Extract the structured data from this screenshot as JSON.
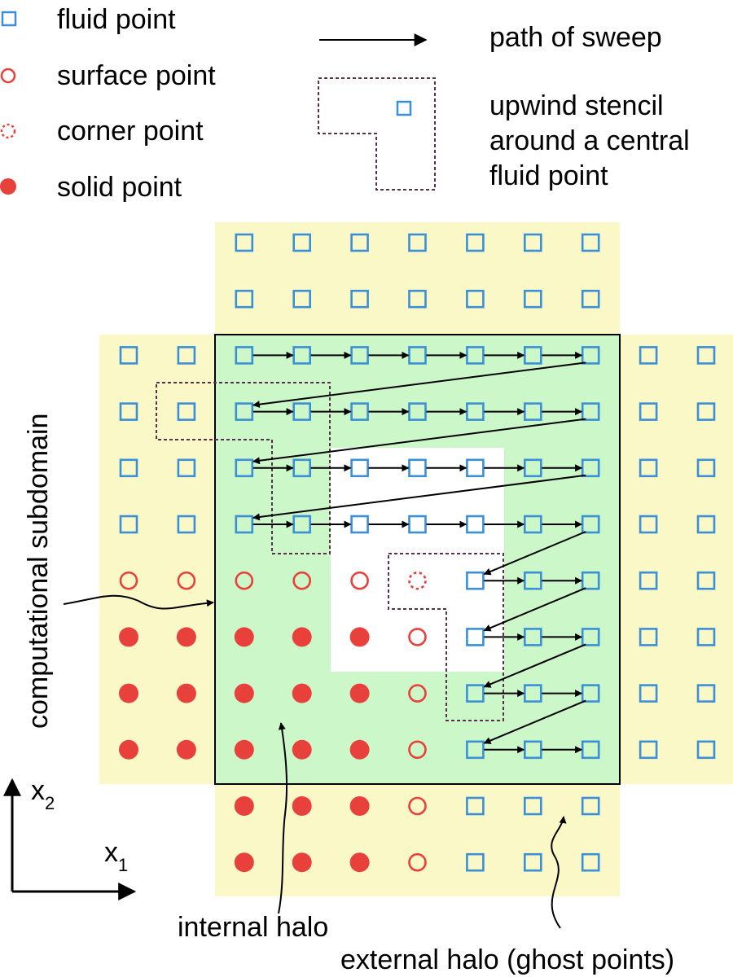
{
  "legend": {
    "fluid": "fluid point",
    "surface": "surface point",
    "corner": "corner point",
    "solid": "solid point",
    "sweep": "path of sweep",
    "stencil_line1": "upwind stencil",
    "stencil_line2": "around a central",
    "stencil_line3": "fluid point"
  },
  "labels": {
    "subdomain": "computational subdomain",
    "internal_halo": "internal halo",
    "external_halo": "external halo (ghost points)",
    "axis_x2": "x",
    "axis_x2_sub": "2",
    "axis_x1": "x",
    "axis_x1_sub": "1"
  },
  "grid": {
    "rows": [
      [
        "",
        "",
        "F",
        "F",
        "F",
        "F",
        "F",
        "F",
        "F",
        "",
        ""
      ],
      [
        "",
        "",
        "F",
        "F",
        "F",
        "F",
        "F",
        "F",
        "F",
        "",
        ""
      ],
      [
        "F",
        "F",
        "F",
        "F",
        "F",
        "F",
        "F",
        "F",
        "F",
        "F",
        "F"
      ],
      [
        "F",
        "F",
        "F",
        "F",
        "F",
        "F",
        "F",
        "F",
        "F",
        "F",
        "F"
      ],
      [
        "F",
        "F",
        "F",
        "F",
        "F",
        "F",
        "F",
        "F",
        "F",
        "F",
        "F"
      ],
      [
        "F",
        "F",
        "F",
        "F",
        "F",
        "F",
        "F",
        "F",
        "F",
        "F",
        "F"
      ],
      [
        "S",
        "S",
        "S",
        "S",
        "S",
        "C",
        "F",
        "F",
        "F",
        "F",
        "F"
      ],
      [
        "D",
        "D",
        "D",
        "D",
        "D",
        "S",
        "F",
        "F",
        "F",
        "F",
        "F"
      ],
      [
        "D",
        "D",
        "D",
        "D",
        "D",
        "S",
        "F",
        "F",
        "F",
        "F",
        "F"
      ],
      [
        "D",
        "D",
        "D",
        "D",
        "D",
        "S",
        "F",
        "F",
        "F",
        "F",
        "F"
      ],
      [
        "",
        "",
        "D",
        "D",
        "D",
        "S",
        "F",
        "F",
        "F",
        "",
        ""
      ],
      [
        "",
        "",
        "D",
        "D",
        "D",
        "S",
        "F",
        "F",
        "F",
        "",
        ""
      ]
    ]
  },
  "colors": {
    "fluid": "#3b8fd6",
    "solid": "#e8403a",
    "external_halo": "#fbf8c8",
    "subdomain": "#ccf7c9",
    "obstacle": "#ffffff",
    "stencil": "#5a2f4a"
  }
}
